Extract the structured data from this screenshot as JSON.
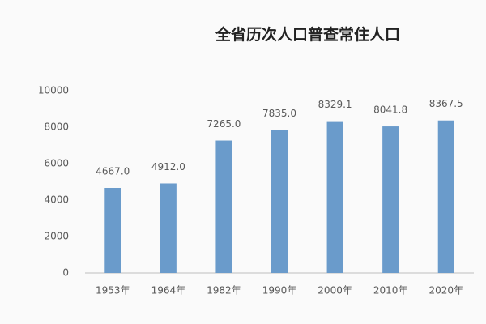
{
  "chart_data": {
    "type": "bar",
    "title": "全省历次人口普查常住人口",
    "categories": [
      "1953年",
      "1964年",
      "1982年",
      "1990年",
      "2000年",
      "2010年",
      "2020年"
    ],
    "values": [
      4667,
      4912,
      7265,
      7835,
      8329.1,
      8041.8,
      8367.5
    ],
    "value_labels": [
      "4667.0",
      "4912.0",
      "7265.0",
      "7835.0",
      "8329.1",
      "8041.8",
      "8367.5"
    ],
    "color": "#6a9bcb",
    "ylim": [
      0,
      10000
    ],
    "yticks": [
      0,
      2000,
      4000,
      6000,
      8000,
      10000
    ],
    "grid": false
  }
}
